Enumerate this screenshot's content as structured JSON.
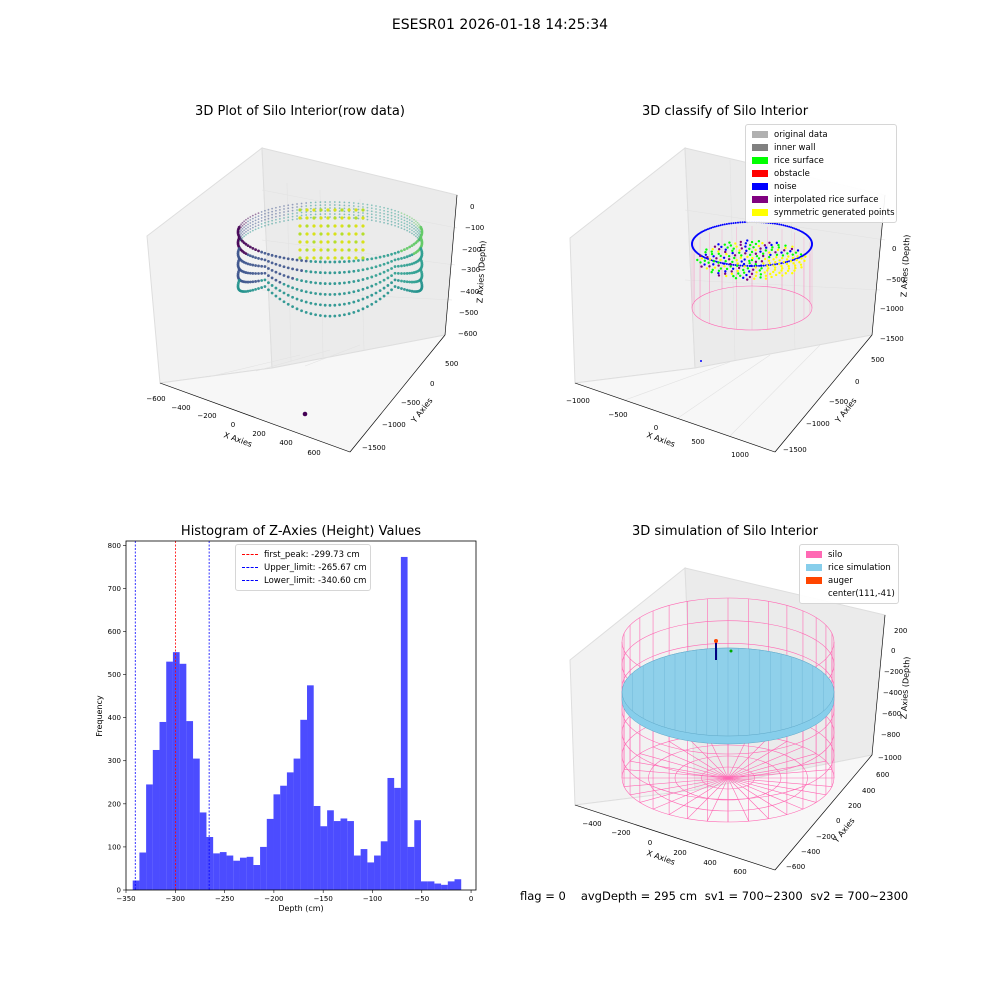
{
  "figure": {
    "title": "ESESR01 2026-01-18 14:25:34"
  },
  "panels": {
    "raw": {
      "title": "3D Plot of Silo Interior(row data)",
      "xlabel": "X Axies",
      "ylabel": "Y Axies",
      "zlabel": "Z Axies (Depth)",
      "xticks": [
        "−600",
        "−400",
        "−200",
        "0",
        "200",
        "400",
        "600"
      ],
      "yticks": [
        "500",
        "0",
        "−500",
        "−1000",
        "−1500"
      ],
      "zticks": [
        "0",
        "−100",
        "−200",
        "−300",
        "−400",
        "−500",
        "−600"
      ]
    },
    "classify": {
      "title": "3D classify of Silo Interior",
      "xlabel": "X Axies",
      "ylabel": "Y Axies",
      "zlabel": "Z Axies (Depth)",
      "xticks": [
        "−1000",
        "−500",
        "0",
        "500",
        "1000"
      ],
      "yticks": [
        "500",
        "0",
        "−500",
        "−1000",
        "−1500"
      ],
      "zticks": [
        "0",
        "−500",
        "−1000",
        "−1500"
      ],
      "legend": [
        {
          "label": "original data",
          "color": "#b0b0b0"
        },
        {
          "label": "inner wall",
          "color": "#808080"
        },
        {
          "label": "rice surface",
          "color": "#00ff00"
        },
        {
          "label": "obstacle",
          "color": "#ff0000"
        },
        {
          "label": "noise",
          "color": "#0000ff"
        },
        {
          "label": "interpolated rice surface",
          "color": "#800080"
        },
        {
          "label": "symmetric generated points",
          "color": "#ffff00"
        }
      ]
    },
    "simulation": {
      "title": "3D simulation of Silo Interior",
      "xlabel": "X Axies",
      "ylabel": "Y Axies",
      "zlabel": "Z Axies (Depth)",
      "xticks": [
        "−400",
        "−200",
        "0",
        "200",
        "400",
        "600"
      ],
      "yticks": [
        "600",
        "400",
        "200",
        "0",
        "−200",
        "−400",
        "−600"
      ],
      "zticks": [
        "200",
        "0",
        "−200",
        "−400",
        "−600",
        "−800",
        "−1000"
      ],
      "legend": [
        {
          "label": "silo",
          "color": "#ff69b4"
        },
        {
          "label": "rice simulation",
          "color": "#87ceeb"
        },
        {
          "label": "auger",
          "color": "#ff4500"
        },
        {
          "label": "center(111,-41)",
          "color": ""
        }
      ]
    }
  },
  "status": {
    "flag": "flag = 0",
    "avg_depth": "avgDepth = 295 cm",
    "sv1": "sv1 = 700~2300",
    "sv2": "sv2 = 700~2300"
  },
  "chart_data": [
    {
      "type": "scatter",
      "projection": "3d",
      "title": "3D Plot of Silo Interior(row data)",
      "xlabel": "X Axies",
      "ylabel": "Y Axies",
      "zlabel": "Z Axies (Depth)",
      "colormap": "viridis",
      "xlim": [
        -600,
        600
      ],
      "ylim": [
        -1500,
        600
      ],
      "zlim": [
        -650,
        50
      ]
    },
    {
      "type": "scatter",
      "projection": "3d",
      "title": "3D classify of Silo Interior",
      "xlabel": "X Axies",
      "ylabel": "Y Axies",
      "zlabel": "Z Axies (Depth)",
      "xlim": [
        -1100,
        1100
      ],
      "ylim": [
        -1500,
        600
      ],
      "zlim": [
        -1500,
        200
      ],
      "legend_position": "upper-right"
    },
    {
      "type": "bar",
      "title": "Histogram of Z-Axies (Height) Values",
      "xlabel": "Depth (cm)",
      "ylabel": "Frequency",
      "bar_color": "#0000ff",
      "bin_width": 6.8,
      "xlim": [
        -350,
        5
      ],
      "ylim": [
        0,
        810
      ],
      "xticks": [
        -350,
        -300,
        -250,
        -200,
        -150,
        -100,
        -50,
        0
      ],
      "yticks": [
        0,
        100,
        200,
        300,
        400,
        500,
        600,
        700,
        800
      ],
      "bins": [
        [
          -343.2,
          22
        ],
        [
          -336.4,
          87
        ],
        [
          -329.6,
          245
        ],
        [
          -322.8,
          325
        ],
        [
          -316.0,
          390
        ],
        [
          -309.2,
          530
        ],
        [
          -302.4,
          552
        ],
        [
          -295.6,
          525
        ],
        [
          -288.8,
          392
        ],
        [
          -282.0,
          305
        ],
        [
          -275.2,
          180
        ],
        [
          -268.4,
          123
        ],
        [
          -261.6,
          85
        ],
        [
          -254.8,
          88
        ],
        [
          -248.0,
          80
        ],
        [
          -241.2,
          68
        ],
        [
          -234.4,
          75
        ],
        [
          -227.6,
          77
        ],
        [
          -220.8,
          58
        ],
        [
          -214.0,
          100
        ],
        [
          -207.2,
          165
        ],
        [
          -200.4,
          222
        ],
        [
          -193.6,
          242
        ],
        [
          -186.8,
          273
        ],
        [
          -180.0,
          305
        ],
        [
          -173.2,
          395
        ],
        [
          -166.4,
          475
        ],
        [
          -159.6,
          195
        ],
        [
          -152.8,
          148
        ],
        [
          -146.0,
          185
        ],
        [
          -139.2,
          160
        ],
        [
          -132.4,
          166
        ],
        [
          -125.6,
          160
        ],
        [
          -118.8,
          80
        ],
        [
          -112.0,
          95
        ],
        [
          -105.2,
          64
        ],
        [
          -98.4,
          80
        ],
        [
          -91.6,
          113
        ],
        [
          -84.8,
          260
        ],
        [
          -78.0,
          237
        ],
        [
          -71.2,
          773
        ],
        [
          -64.4,
          100
        ],
        [
          -57.6,
          162
        ],
        [
          -50.8,
          20
        ],
        [
          -44.0,
          20
        ],
        [
          -37.2,
          15
        ],
        [
          -30.4,
          12
        ],
        [
          -23.6,
          20
        ],
        [
          -16.8,
          25
        ]
      ],
      "reference_lines": [
        {
          "label": "first_peak: -299.73 cm",
          "x": -299.73,
          "color": "#ff0000"
        },
        {
          "label": "Upper_limit: -265.67 cm",
          "x": -265.67,
          "color": "#0000ff"
        },
        {
          "label": "Lower_limit: -340.60 cm",
          "x": -340.6,
          "color": "#0000ff"
        }
      ],
      "legend_position": "upper-center"
    },
    {
      "type": "scatter",
      "projection": "3d",
      "title": "3D simulation of Silo Interior",
      "xlabel": "X Axies",
      "ylabel": "Y Axies",
      "zlabel": "Z Axies (Depth)",
      "xlim": [
        -500,
        700
      ],
      "ylim": [
        -700,
        700
      ],
      "zlim": [
        -1100,
        300
      ],
      "legend_position": "upper-right"
    }
  ]
}
